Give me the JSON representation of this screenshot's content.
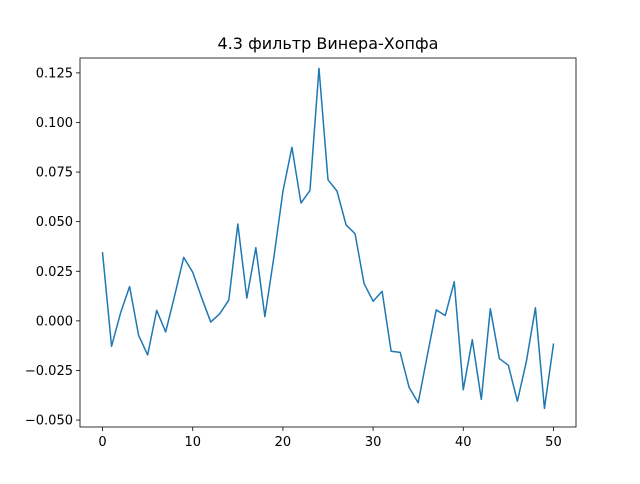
{
  "chart_data": {
    "type": "line",
    "title": "4.3 фильтр Винера-Хопфа",
    "xlabel": "",
    "ylabel": "",
    "xlim": [
      -2.5,
      52.5
    ],
    "ylim": [
      -0.0535,
      0.1325
    ],
    "x_ticks": [
      0,
      10,
      20,
      30,
      40,
      50
    ],
    "x_tick_labels": [
      "0",
      "10",
      "20",
      "30",
      "40",
      "50"
    ],
    "y_ticks": [
      -0.05,
      -0.025,
      0.0,
      0.025,
      0.05,
      0.075,
      0.1,
      0.125
    ],
    "y_tick_labels": [
      "−0.050",
      "−0.025",
      "0.000",
      "0.025",
      "0.050",
      "0.075",
      "0.100",
      "0.125"
    ],
    "grid": false,
    "legend": "none",
    "series": [
      {
        "color": "#1f77b4",
        "x": [
          0,
          1,
          2,
          3,
          4,
          5,
          6,
          7,
          8,
          9,
          10,
          11,
          12,
          13,
          14,
          15,
          16,
          17,
          18,
          19,
          20,
          21,
          22,
          23,
          24,
          25,
          26,
          27,
          28,
          29,
          30,
          31,
          32,
          33,
          34,
          35,
          36,
          37,
          38,
          39,
          40,
          41,
          42,
          43,
          44,
          45,
          46,
          47,
          48,
          49,
          50
        ],
        "values": [
          0.0343,
          -0.0128,
          0.004,
          0.0173,
          -0.0073,
          -0.0172,
          0.0053,
          -0.0056,
          0.0128,
          0.032,
          0.0245,
          0.0115,
          -0.0006,
          0.0036,
          0.0105,
          0.0488,
          0.0115,
          0.0369,
          0.0021,
          0.0321,
          0.0652,
          0.0875,
          0.0594,
          0.0657,
          0.1273,
          0.0711,
          0.0654,
          0.0484,
          0.0439,
          0.0188,
          0.0099,
          0.0149,
          -0.0153,
          -0.0159,
          -0.0336,
          -0.0413,
          -0.0177,
          0.0055,
          0.0027,
          0.0197,
          -0.0347,
          -0.0095,
          -0.0396,
          0.0061,
          -0.019,
          -0.0224,
          -0.0405,
          -0.0204,
          0.0066,
          -0.0441,
          -0.0118
        ]
      }
    ]
  }
}
